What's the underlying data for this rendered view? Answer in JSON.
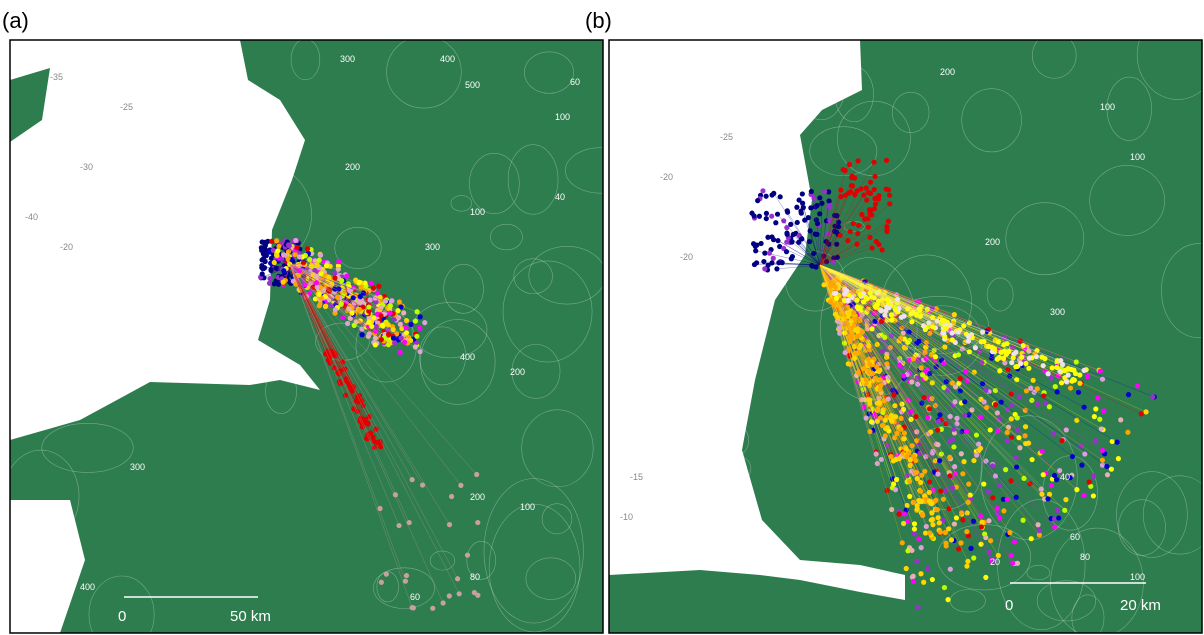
{
  "panels": [
    {
      "label": "(a)",
      "scale_bar": {
        "start": "0",
        "end": "50 km"
      },
      "contour_labels": [
        "300",
        "400",
        "500",
        "200",
        "100",
        "300",
        "400",
        "200",
        "100",
        "60",
        "40",
        "20",
        "300",
        "400",
        "200",
        "100",
        "80",
        "60"
      ],
      "sea_labels": [
        "-20",
        "-35",
        "-30",
        "-40",
        "-25"
      ]
    },
    {
      "label": "(b)",
      "scale_bar": {
        "start": "0",
        "end": "20 km"
      },
      "contour_labels": [
        "200",
        "100",
        "300",
        "200",
        "100",
        "20",
        "40",
        "60",
        "80",
        "100"
      ],
      "sea_labels": [
        "-20",
        "-25",
        "-15",
        "-10",
        "-20"
      ]
    }
  ]
}
